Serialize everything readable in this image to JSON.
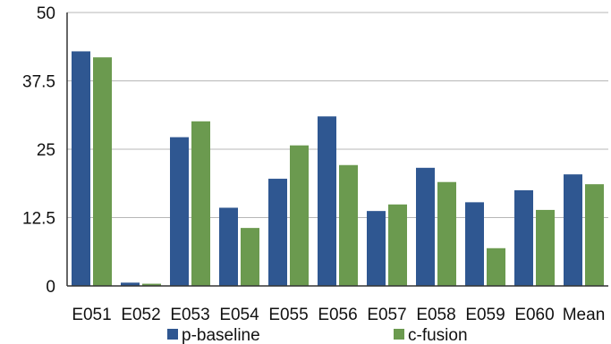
{
  "chart_data": {
    "type": "bar",
    "title": "",
    "xlabel": "",
    "ylabel": "",
    "ylim": [
      0,
      50
    ],
    "yticks": [
      0,
      12.5,
      25,
      37.5,
      50
    ],
    "ytick_labels": [
      "0",
      "12.5",
      "25",
      "37.5",
      "50"
    ],
    "grid": true,
    "legend_position": "bottom",
    "categories": [
      "E051",
      "E052",
      "E053",
      "E054",
      "E055",
      "E056",
      "E057",
      "E058",
      "E059",
      "E060",
      "Mean"
    ],
    "series": [
      {
        "name": "p-baseline",
        "color": "#2f5791",
        "values": [
          42.9,
          0.6,
          27.2,
          14.3,
          19.6,
          31.0,
          13.7,
          21.6,
          15.3,
          17.5,
          20.4
        ]
      },
      {
        "name": "c-fusion",
        "color": "#6b9a4f",
        "values": [
          41.8,
          0.4,
          30.1,
          10.6,
          25.7,
          22.1,
          14.9,
          19.0,
          6.9,
          13.9,
          18.6
        ]
      }
    ]
  }
}
